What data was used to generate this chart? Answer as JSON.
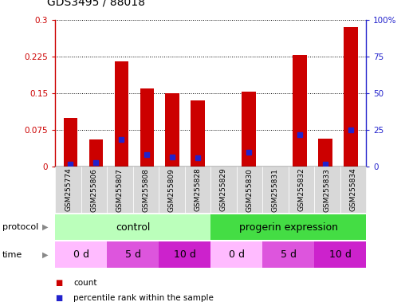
{
  "title": "GDS3495 / 88018",
  "samples": [
    "GSM255774",
    "GSM255806",
    "GSM255807",
    "GSM255808",
    "GSM255809",
    "GSM255828",
    "GSM255829",
    "GSM255830",
    "GSM255831",
    "GSM255832",
    "GSM255833",
    "GSM255834"
  ],
  "red_values": [
    0.1,
    0.055,
    0.215,
    0.16,
    0.15,
    0.135,
    0.0,
    0.153,
    0.0,
    0.228,
    0.058,
    0.285
  ],
  "blue_values": [
    0.005,
    0.008,
    0.055,
    0.025,
    0.02,
    0.018,
    0.0,
    0.03,
    0.0,
    0.065,
    0.005,
    0.075
  ],
  "ylim_left": [
    0,
    0.3
  ],
  "ylim_right": [
    0,
    100
  ],
  "yticks_left": [
    0,
    0.075,
    0.15,
    0.225,
    0.3
  ],
  "yticks_right": [
    0,
    25,
    50,
    75,
    100
  ],
  "ytick_labels_left": [
    "0",
    "0.075",
    "0.15",
    "0.225",
    "0.3"
  ],
  "ytick_labels_right": [
    "0",
    "25",
    "50",
    "75",
    "100%"
  ],
  "red_color": "#cc0000",
  "blue_color": "#2222cc",
  "bar_width": 0.55,
  "protocol_control_color": "#bbffbb",
  "protocol_progerin_color": "#44dd44",
  "time_colors": [
    "#ffbbff",
    "#dd55dd",
    "#cc22cc",
    "#ffbbff",
    "#dd55dd",
    "#cc22cc"
  ],
  "time_labels": [
    "0 d",
    "5 d",
    "10 d",
    "0 d",
    "5 d",
    "10 d"
  ],
  "tick_color_left": "#cc0000",
  "tick_color_right": "#2222cc"
}
